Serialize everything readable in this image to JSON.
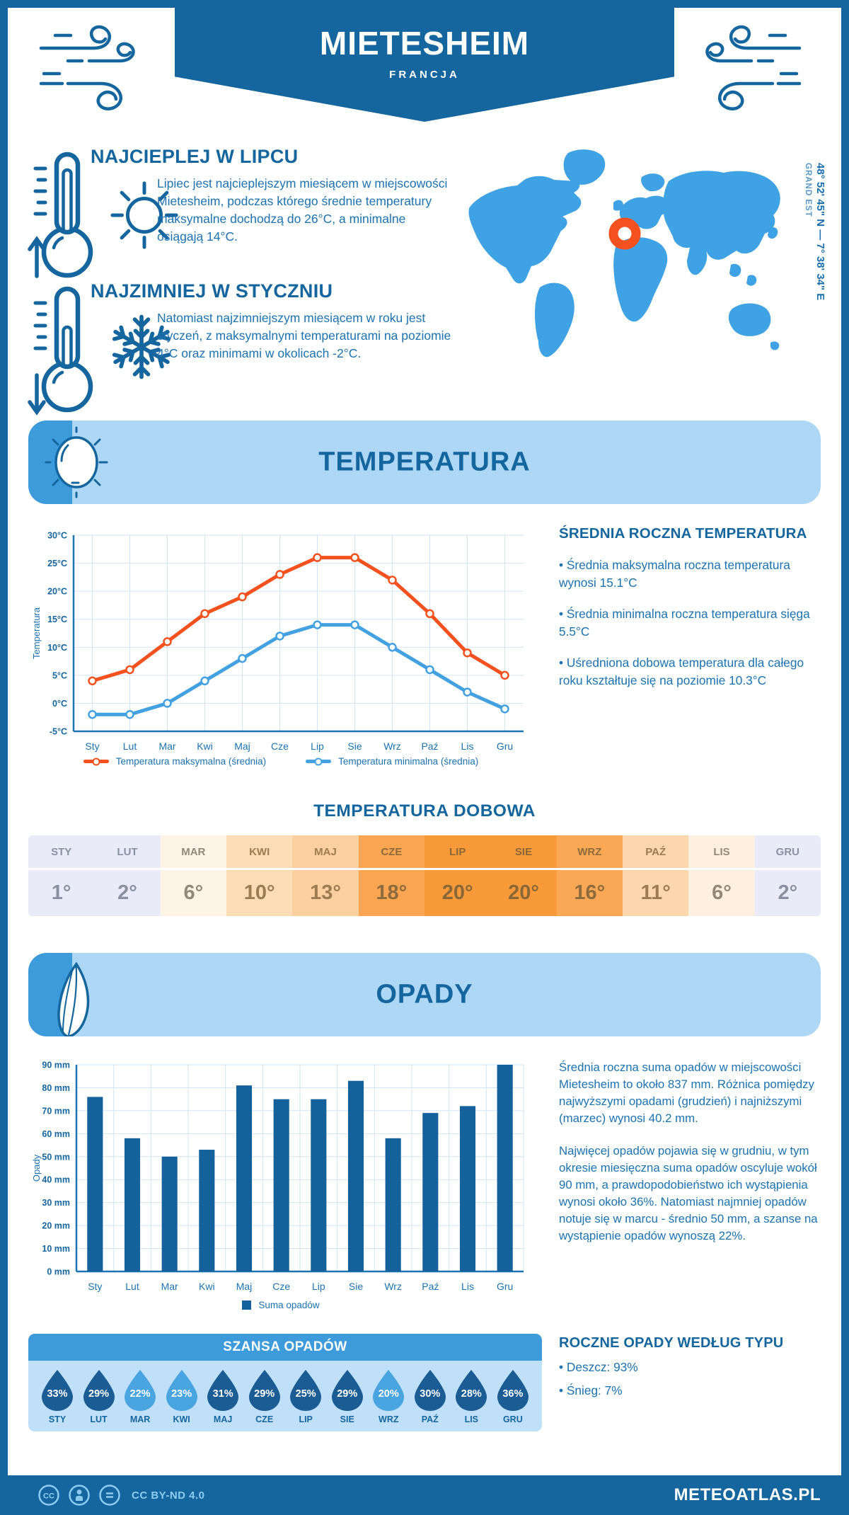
{
  "header": {
    "title": "MIETESHEIM",
    "subtitle": "FRANCJA",
    "coordinates": "48° 52' 45\" N — 7° 38' 34\" E",
    "region": "GRAND EST"
  },
  "highlights": [
    {
      "title": "NAJCIEPLEJ W LIPCU",
      "text": "Lipiec jest najcieplejszym miesiącem w miejscowości Mietesheim, podczas którego średnie temperatury maksymalne dochodzą do 26°C, a minimalne osiągają 14°C."
    },
    {
      "title": "NAJZIMNIEJ W STYCZNIU",
      "text": "Natomiast najzimniejszym miesiącem w roku jest styczeń, z maksymalnymi temperaturami na poziomie 4°C oraz minimami w okolicach -2°C."
    }
  ],
  "temperature_section": {
    "title": "TEMPERATURA",
    "stats_title": "ŚREDNIA ROCZNA TEMPERATURA",
    "stats": [
      "• Średnia maksymalna roczna temperatura wynosi 15.1°C",
      "• Średnia minimalna roczna temperatura sięga 5.5°C",
      "• Uśredniona dobowa temperatura dla całego roku kształtuje się na poziomie 10.3°C"
    ],
    "daily_title": "TEMPERATURA DOBOWA",
    "daily": {
      "months": [
        "STY",
        "LUT",
        "MAR",
        "KWI",
        "MAJ",
        "CZE",
        "LIP",
        "SIE",
        "WRZ",
        "PAŹ",
        "LIS",
        "GRU"
      ],
      "values": [
        "1°",
        "2°",
        "6°",
        "10°",
        "13°",
        "18°",
        "20°",
        "20°",
        "16°",
        "11°",
        "6°",
        "2°"
      ],
      "cell_colors": [
        "#e9ecf8",
        "#e9ecf8",
        "#fdf3e6",
        "#fcdcb4",
        "#fccfa0",
        "#faa551",
        "#f8993a",
        "#f8993a",
        "#faa855",
        "#fcd7ad",
        "#fdf0e0",
        "#e9ecf8"
      ],
      "text_colors": [
        "#8b90a0",
        "#8b90a0",
        "#93897b",
        "#9c7c50",
        "#9c7c50",
        "#8d6b3c",
        "#8a6737",
        "#8a6737",
        "#8d6b3c",
        "#9c7c50",
        "#93897b",
        "#8b90a0"
      ]
    }
  },
  "precipitation_section": {
    "title": "OPADY",
    "paragraphs": [
      "Średnia roczna suma opadów w miejscowości Mietesheim to około 837 mm. Różnica pomiędzy najwyższymi opadami (grudzień) i najniższymi (marzec) wynosi 40.2 mm.",
      "Najwięcej opadów pojawia się w grudniu, w tym okresie miesięczna suma opadów oscyluje wokół 90 mm, a prawdopodobieństwo ich wystąpienia wynosi około 36%. Natomiast najmniej opadów notuje się w marcu - średnio 50 mm, a szanse na wystąpienie opadów wynoszą 22%."
    ],
    "types_title": "ROCZNE OPADY WEDŁUG TYPU",
    "types": [
      "• Deszcz: 93%",
      "• Śnieg: 7%"
    ],
    "chance": {
      "title": "SZANSA OPADÓW",
      "months": [
        "STY",
        "LUT",
        "MAR",
        "KWI",
        "MAJ",
        "CZE",
        "LIP",
        "SIE",
        "WRZ",
        "PAŹ",
        "LIS",
        "GRU"
      ],
      "values": [
        "33%",
        "29%",
        "22%",
        "23%",
        "31%",
        "29%",
        "25%",
        "29%",
        "20%",
        "30%",
        "28%",
        "36%"
      ],
      "tone": [
        "dark",
        "dark",
        "light",
        "light",
        "dark",
        "dark",
        "dark",
        "dark",
        "light",
        "dark",
        "dark",
        "dark"
      ],
      "dark_color": "#1a5c93",
      "light_color": "#4aa4e0"
    }
  },
  "chart_data": [
    {
      "type": "line",
      "categories": [
        "Sty",
        "Lut",
        "Mar",
        "Kwi",
        "Maj",
        "Cze",
        "Lip",
        "Sie",
        "Wrz",
        "Paź",
        "Lis",
        "Gru"
      ],
      "series": [
        {
          "name": "Temperatura maksymalna (średnia)",
          "color": "#f4511e",
          "values": [
            4,
            6,
            11,
            16,
            19,
            23,
            26,
            26,
            22,
            16,
            9,
            5
          ]
        },
        {
          "name": "Temperatura minimalna (średnia)",
          "color": "#43a1e2",
          "values": [
            -2,
            -2,
            0,
            4,
            8,
            12,
            14,
            14,
            10,
            6,
            2,
            -1
          ]
        }
      ],
      "ylabel": "Temperatura",
      "ylim": [
        -5,
        30
      ],
      "ytick": 5,
      "unit": "°C",
      "grid": true,
      "legend_position": "bottom"
    },
    {
      "type": "bar",
      "categories": [
        "Sty",
        "Lut",
        "Mar",
        "Kwi",
        "Maj",
        "Cze",
        "Lip",
        "Sie",
        "Wrz",
        "Paź",
        "Lis",
        "Gru"
      ],
      "series": [
        {
          "name": "Suma opadów",
          "color": "#15619c",
          "values": [
            76,
            58,
            50,
            53,
            81,
            75,
            75,
            83,
            58,
            69,
            72,
            90
          ]
        }
      ],
      "ylabel": "Opady",
      "ylim": [
        0,
        90
      ],
      "ytick": 10,
      "unit": " mm",
      "grid": true,
      "legend_position": "bottom"
    }
  ],
  "footer": {
    "license": "CC BY-ND 4.0",
    "brand": "METEOATLAS.PL"
  }
}
